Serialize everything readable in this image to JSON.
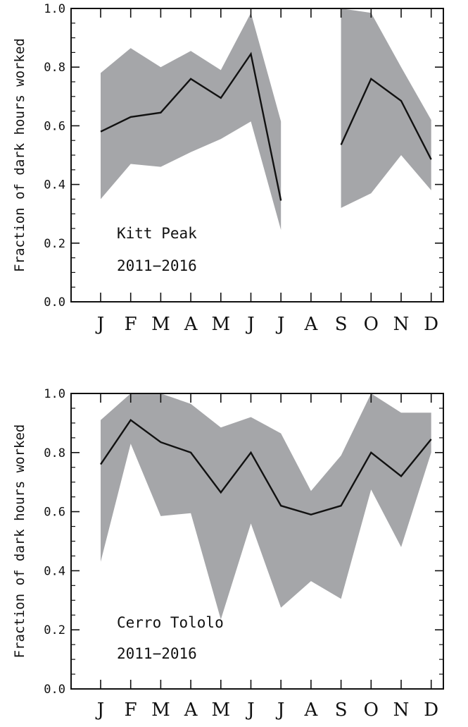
{
  "chart_data": [
    {
      "type": "line",
      "panel": "top",
      "categories": [
        "J",
        "F",
        "M",
        "A",
        "M",
        "J",
        "J",
        "A",
        "S",
        "O",
        "N",
        "D"
      ],
      "ylabel": "Fraction of dark hours worked",
      "ylim": [
        0.0,
        1.0
      ],
      "yticks": [
        "0.0",
        "0.2",
        "0.4",
        "0.6",
        "0.8",
        "1.0"
      ],
      "annotation": [
        "Kitt Peak",
        "2011−2016"
      ],
      "band_color": "#a5a6a9",
      "line_color": "#111111",
      "series": [
        {
          "role": "mean",
          "values": [
            0.58,
            0.63,
            0.645,
            0.76,
            0.695,
            0.845,
            0.345,
            null,
            0.535,
            0.76,
            0.685,
            0.485
          ]
        },
        {
          "role": "upper",
          "values": [
            0.78,
            0.865,
            0.8,
            0.855,
            0.79,
            0.985,
            0.615,
            null,
            1.0,
            0.985,
            0.8,
            0.62
          ]
        },
        {
          "role": "lower",
          "values": [
            0.35,
            0.47,
            0.46,
            0.51,
            0.555,
            0.615,
            0.245,
            null,
            0.32,
            0.37,
            0.5,
            0.38
          ]
        }
      ]
    },
    {
      "type": "line",
      "panel": "bottom",
      "categories": [
        "J",
        "F",
        "M",
        "A",
        "M",
        "J",
        "J",
        "A",
        "S",
        "O",
        "N",
        "D"
      ],
      "ylabel": "Fraction of dark hours worked",
      "ylim": [
        0.0,
        1.0
      ],
      "yticks": [
        "0.0",
        "0.2",
        "0.4",
        "0.6",
        "0.8",
        "1.0"
      ],
      "annotation": [
        "Cerro Tololo",
        "2011−2016"
      ],
      "band_color": "#a5a6a9",
      "line_color": "#111111",
      "series": [
        {
          "role": "mean",
          "values": [
            0.76,
            0.91,
            0.835,
            0.8,
            0.665,
            0.8,
            0.62,
            0.59,
            0.62,
            0.8,
            0.72,
            0.845
          ]
        },
        {
          "role": "upper",
          "values": [
            0.91,
            1.0,
            1.0,
            0.965,
            0.885,
            0.92,
            0.865,
            0.67,
            0.79,
            1.0,
            0.935,
            0.935
          ]
        },
        {
          "role": "lower",
          "values": [
            0.43,
            0.83,
            0.585,
            0.595,
            0.235,
            0.56,
            0.275,
            0.365,
            0.305,
            0.675,
            0.48,
            0.8
          ]
        }
      ]
    }
  ]
}
